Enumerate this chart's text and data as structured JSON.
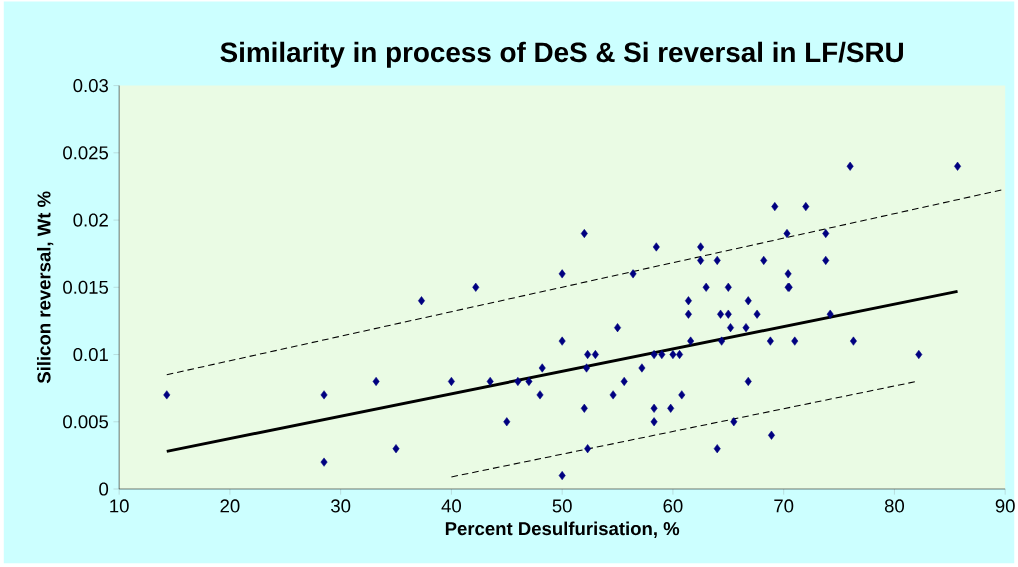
{
  "chart_data": {
    "type": "scatter",
    "title": "Similarity in process of DeS & Si reversal in LF/SRU",
    "xlabel": "Percent Desulfurisation, %",
    "ylabel": "Silicon reversal, Wt %",
    "xlim": [
      10,
      90
    ],
    "ylim": [
      0,
      0.03
    ],
    "xticks": [
      10,
      20,
      30,
      40,
      50,
      60,
      70,
      80,
      90
    ],
    "yticks": [
      0,
      0.005,
      0.01,
      0.015,
      0.02,
      0.025,
      0.03
    ],
    "grid": false,
    "series": [
      {
        "marker": "diamond",
        "color": "#000080",
        "x": [
          14.3,
          28.5,
          28.5,
          33.2,
          35,
          37.3,
          40,
          42.2,
          43.5,
          45,
          46,
          47,
          48,
          48.2,
          50,
          50,
          50,
          52,
          52,
          52.2,
          52.3,
          52.3,
          53,
          54.6,
          55,
          55.6,
          56.4,
          57.2,
          58.5,
          58.3,
          58.3,
          58.3,
          59,
          59.8,
          60,
          60.6,
          60.8,
          61.4,
          61.4,
          61.6,
          62.5,
          62.5,
          63,
          64,
          64,
          64.3,
          64.4,
          65,
          65,
          65.2,
          65.5,
          66.8,
          66.6,
          66.8,
          67.6,
          68.2,
          68.8,
          68.9,
          69.2,
          70.3,
          70.4,
          70.4,
          70.5,
          71,
          72,
          73.8,
          73.8,
          74.2,
          76,
          76.3,
          82.2,
          85.7
        ],
        "values": [
          0.007,
          0.007,
          0.002,
          0.008,
          0.003,
          0.014,
          0.008,
          0.015,
          0.008,
          0.005,
          0.008,
          0.008,
          0.007,
          0.009,
          0.016,
          0.011,
          0.001,
          0.019,
          0.006,
          0.009,
          0.01,
          0.003,
          0.01,
          0.007,
          0.012,
          0.008,
          0.016,
          0.009,
          0.018,
          0.01,
          0.006,
          0.005,
          0.01,
          0.006,
          0.01,
          0.01,
          0.007,
          0.014,
          0.013,
          0.011,
          0.018,
          0.017,
          0.015,
          0.017,
          0.003,
          0.013,
          0.011,
          0.015,
          0.013,
          0.012,
          0.005,
          0.014,
          0.012,
          0.008,
          0.013,
          0.017,
          0.011,
          0.004,
          0.021,
          0.019,
          0.016,
          0.015,
          0.015,
          0.011,
          0.021,
          0.019,
          0.017,
          0.013,
          0.024,
          0.011,
          0.01,
          0.024
        ]
      },
      {
        "type": "line",
        "marker": "none",
        "line_style": "solid",
        "color": "#000000",
        "x": [
          14.3,
          85.7
        ],
        "values": [
          0.0028,
          0.0147
        ]
      },
      {
        "type": "line",
        "marker": "none",
        "line_style": "dashed",
        "color": "#000000",
        "x": [
          14.3,
          90
        ],
        "values": [
          0.0085,
          0.0223
        ]
      },
      {
        "type": "line",
        "marker": "none",
        "line_style": "dashed",
        "color": "#000000",
        "x": [
          40,
          82
        ],
        "values": [
          0.0009,
          0.008
        ]
      }
    ]
  }
}
